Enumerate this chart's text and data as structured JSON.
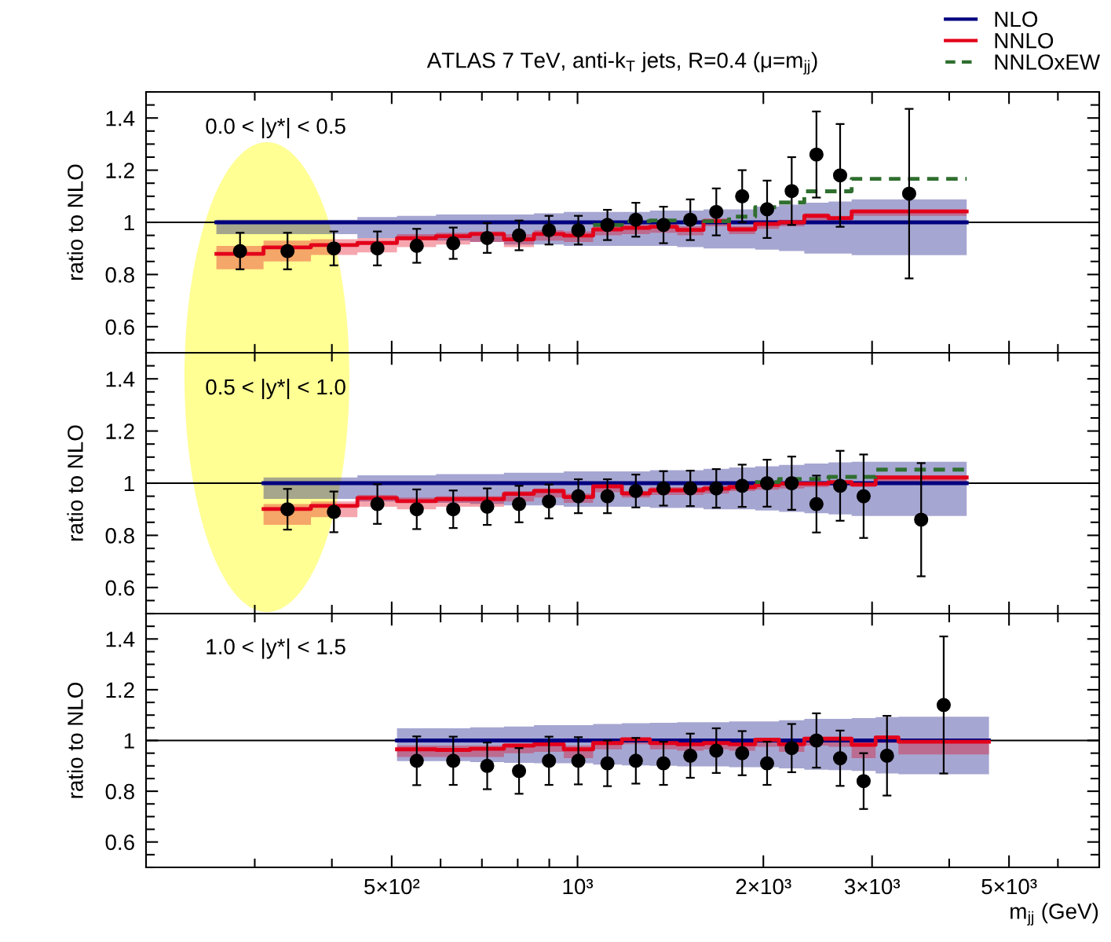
{
  "chart_data": [
    {
      "type": "step",
      "title": "ATLAS 7 TeV, anti-k$_{T}$ jets, R=0.4 (μ=m$_{jj}$)",
      "ylabel": "ratio to NLO",
      "annotations": [
        "0.0 < |y*| < 0.5"
      ],
      "xlim": [
        200,
        7000
      ],
      "ylim": [
        0.5,
        1.5
      ],
      "log": "x",
      "xticks": [
        {
          "value": 500,
          "label": null
        },
        {
          "value": 1000,
          "label": null
        },
        {
          "value": 2000,
          "label": null
        },
        {
          "value": 3000,
          "label": null
        },
        {
          "value": 5000,
          "label": null
        }
      ],
      "yticks": [
        0.6,
        0.8,
        1,
        1.2,
        1.4
      ],
      "tick_labels": "y",
      "grid": false,
      "legend": "top right",
      "ref_lines": [
        {
          "axis": "y",
          "value": 1,
          "color": "#000000"
        }
      ],
      "series": [
        {
          "name": "NLO",
          "color": "#00007f",
          "x": [
            260,
            310,
            370,
            440,
            510,
            590,
            670,
            760,
            850,
            950,
            1060,
            1180,
            1310,
            1450,
            1600,
            1760,
            1940,
            2120,
            2330,
            2550,
            2780,
            4270
          ],
          "values": [
            1,
            1,
            1,
            1,
            1,
            1,
            1,
            1,
            1,
            1,
            1,
            1,
            1,
            1,
            1,
            1,
            1,
            1,
            1,
            1,
            1,
            1
          ],
          "upper": [
            1.01,
            1.01,
            1.01,
            1.02,
            1.025,
            1.03,
            1.03,
            1.03,
            1.035,
            1.04,
            1.04,
            1.04,
            1.045,
            1.045,
            1.05,
            1.05,
            1.06,
            1.068,
            1.075,
            1.08,
            1.088,
            1.088
          ],
          "lower": [
            0.955,
            0.955,
            0.955,
            0.94,
            0.935,
            0.93,
            0.925,
            0.915,
            0.915,
            0.91,
            0.91,
            0.91,
            0.91,
            0.905,
            0.9,
            0.9,
            0.895,
            0.89,
            0.88,
            0.88,
            0.874,
            0.874
          ]
        },
        {
          "name": "NNLO",
          "color": "#e3001b",
          "x": [
            260,
            310,
            370,
            440,
            510,
            590,
            670,
            760,
            850,
            950,
            1060,
            1180,
            1310,
            1450,
            1600,
            1760,
            1940,
            2120,
            2330,
            2550,
            2780,
            4270
          ],
          "values": [
            0.879,
            0.904,
            0.913,
            0.921,
            0.939,
            0.947,
            0.955,
            0.935,
            0.955,
            0.949,
            0.973,
            0.979,
            0.983,
            0.971,
            1.004,
            0.973,
            0.994,
            1.0,
            1.025,
            1.016,
            1.042,
            1.042
          ],
          "lower": [
            0.82,
            0.85,
            0.875,
            0.885,
            0.905,
            0.915,
            0.925,
            0.905,
            0.93,
            0.925,
            0.95,
            0.955,
            0.96,
            0.95,
            0.985,
            0.955,
            0.975,
            0.985,
            1.005,
            1.0,
            1.025,
            1.025
          ],
          "upper": [
            0.91,
            0.93,
            0.935,
            0.94,
            0.955,
            0.96,
            0.965,
            0.955,
            0.97,
            0.965,
            0.985,
            0.99,
            0.995,
            0.985,
            1.015,
            0.985,
            1.005,
            1.01,
            1.035,
            1.025,
            1.05,
            1.05
          ]
        },
        {
          "name": "NNLOxEW",
          "color": "#2f6f2f",
          "line_style": "dashed",
          "x": [
            1060,
            1180,
            1310,
            1450,
            1600,
            1760,
            1940,
            2120,
            2330,
            2550,
            2780,
            4270
          ],
          "values": [
            0.99,
            1.004,
            1.007,
            1.004,
            1.004,
            1.022,
            1.058,
            1.076,
            1.119,
            1.119,
            1.167,
            1.167
          ]
        },
        {
          "type": "scatter",
          "color": "#000000",
          "marker": "circle",
          "x": [
            284,
            339,
            403,
            474,
            549,
            629,
            714,
            804,
            899,
            1003,
            1118,
            1243,
            1378,
            1523,
            1678,
            1848,
            2028,
            2223,
            2438,
            2663,
            3445
          ],
          "values": [
            0.89,
            0.89,
            0.9,
            0.9,
            0.91,
            0.92,
            0.94,
            0.95,
            0.97,
            0.97,
            0.99,
            1.01,
            0.99,
            1.01,
            1.04,
            1.1,
            1.05,
            1.12,
            1.26,
            1.18,
            1.11
          ],
          "errors": [
            0.07,
            0.07,
            0.065,
            0.065,
            0.065,
            0.06,
            0.057,
            0.057,
            0.055,
            0.055,
            0.058,
            0.065,
            0.07,
            0.078,
            0.09,
            0.1,
            0.11,
            0.13,
            0.165,
            0.197,
            0.325
          ]
        }
      ]
    },
    {
      "type": "step",
      "ylabel": "ratio to NLO",
      "annotations": [
        "0.5 < |y*| < 1.0"
      ],
      "xlim": [
        200,
        7000
      ],
      "ylim": [
        0.5,
        1.5
      ],
      "log": "x",
      "xticks": [
        {
          "value": 500,
          "label": null
        },
        {
          "value": 1000,
          "label": null
        },
        {
          "value": 2000,
          "label": null
        },
        {
          "value": 3000,
          "label": null
        },
        {
          "value": 5000,
          "label": null
        }
      ],
      "yticks": [
        0.6,
        0.8,
        1,
        1.2,
        1.4
      ],
      "tick_labels": "y",
      "grid": false,
      "ref_lines": [
        {
          "axis": "y",
          "value": 1,
          "color": "#000000"
        }
      ],
      "series": [
        {
          "color": "#00007f",
          "x": [
            310,
            370,
            440,
            510,
            590,
            670,
            760,
            850,
            950,
            1060,
            1180,
            1310,
            1450,
            1600,
            1760,
            1940,
            2120,
            2330,
            2550,
            2780,
            3040,
            4270
          ],
          "values": [
            1,
            1,
            1,
            1,
            1,
            1,
            1,
            1,
            1,
            1,
            1,
            1,
            1,
            1,
            1,
            1,
            1,
            1,
            1,
            1,
            1,
            1
          ],
          "upper": [
            1.022,
            1.022,
            1.03,
            1.03,
            1.035,
            1.035,
            1.04,
            1.04,
            1.045,
            1.045,
            1.045,
            1.05,
            1.05,
            1.055,
            1.06,
            1.065,
            1.07,
            1.075,
            1.08,
            1.082,
            1.082,
            1.082
          ],
          "lower": [
            0.94,
            0.94,
            0.93,
            0.925,
            0.925,
            0.92,
            0.915,
            0.915,
            0.91,
            0.91,
            0.91,
            0.905,
            0.905,
            0.9,
            0.9,
            0.895,
            0.89,
            0.885,
            0.88,
            0.874,
            0.874,
            0.874
          ]
        },
        {
          "color": "#e3001b",
          "x": [
            310,
            370,
            440,
            510,
            590,
            670,
            760,
            850,
            950,
            1060,
            1180,
            1310,
            1450,
            1600,
            1760,
            1940,
            2120,
            2330,
            2550,
            2780,
            3040,
            4270
          ],
          "values": [
            0.901,
            0.913,
            0.943,
            0.931,
            0.939,
            0.939,
            0.959,
            0.97,
            0.947,
            0.988,
            0.961,
            0.973,
            0.973,
            0.979,
            0.985,
            0.992,
            0.998,
            0.998,
            1.004,
            0.995,
            1.022,
            1.022
          ],
          "lower": [
            0.84,
            0.87,
            0.91,
            0.9,
            0.91,
            0.91,
            0.93,
            0.945,
            0.925,
            0.965,
            0.945,
            0.955,
            0.955,
            0.96,
            0.97,
            0.975,
            0.98,
            0.985,
            0.99,
            0.985,
            1.0,
            1.0
          ],
          "upper": [
            0.92,
            0.93,
            0.955,
            0.945,
            0.95,
            0.95,
            0.97,
            0.98,
            0.96,
            1.0,
            0.97,
            0.985,
            0.985,
            0.99,
            0.995,
            1.0,
            1.005,
            1.005,
            1.01,
            1.005,
            1.03,
            1.03
          ]
        },
        {
          "color": "#2f6f2f",
          "line_style": "dashed",
          "x": [
            1940,
            2120,
            2330,
            2550,
            2780,
            3040,
            4270
          ],
          "values": [
            1.004,
            1.016,
            1.016,
            1.024,
            1.024,
            1.052,
            1.052
          ]
        },
        {
          "type": "scatter",
          "color": "#000000",
          "marker": "circle",
          "x": [
            339,
            403,
            474,
            549,
            629,
            714,
            804,
            899,
            1003,
            1118,
            1243,
            1378,
            1523,
            1678,
            1848,
            2028,
            2223,
            2438,
            2663,
            2907,
            3603
          ],
          "values": [
            0.9,
            0.89,
            0.92,
            0.9,
            0.9,
            0.91,
            0.92,
            0.93,
            0.95,
            0.95,
            0.97,
            0.98,
            0.98,
            0.98,
            0.99,
            1.0,
            1.0,
            0.92,
            0.99,
            0.95,
            0.86
          ],
          "errors": [
            0.078,
            0.078,
            0.076,
            0.076,
            0.072,
            0.07,
            0.07,
            0.065,
            0.065,
            0.065,
            0.063,
            0.066,
            0.068,
            0.074,
            0.081,
            0.09,
            0.102,
            0.109,
            0.134,
            0.16,
            0.217
          ]
        }
      ]
    },
    {
      "type": "step",
      "xlabel": "m$_{jj}$ (GeV)",
      "ylabel": "ratio to NLO",
      "annotations": [
        "1.0 < |y*| < 1.5"
      ],
      "xlim": [
        200,
        7000
      ],
      "ylim": [
        0.5,
        1.5
      ],
      "log": "x",
      "xticks": [
        {
          "value": 500,
          "label": "5×10²"
        },
        {
          "value": 1000,
          "label": "10³"
        },
        {
          "value": 2000,
          "label": "2×10³"
        },
        {
          "value": 3000,
          "label": "3×10³"
        },
        {
          "value": 5000,
          "label": "5×10³"
        }
      ],
      "yticks": [
        0.6,
        0.8,
        1,
        1.2,
        1.4
      ],
      "grid": false,
      "ref_lines": [
        {
          "axis": "y",
          "value": 1,
          "color": "#000000"
        }
      ],
      "series": [
        {
          "color": "#00007f",
          "x": [
            510,
            590,
            670,
            760,
            850,
            950,
            1060,
            1180,
            1310,
            1450,
            1600,
            1760,
            1940,
            2120,
            2330,
            2550,
            2780,
            3040,
            3310,
            4640
          ],
          "values": [
            1,
            1,
            1,
            1,
            1,
            1,
            1,
            1,
            1,
            1,
            1,
            1,
            1,
            1,
            1,
            1,
            1,
            1,
            1,
            1
          ],
          "upper": [
            1.048,
            1.048,
            1.052,
            1.055,
            1.06,
            1.06,
            1.065,
            1.068,
            1.07,
            1.072,
            1.072,
            1.075,
            1.075,
            1.08,
            1.085,
            1.085,
            1.088,
            1.092,
            1.094,
            1.094
          ],
          "lower": [
            0.919,
            0.919,
            0.915,
            0.912,
            0.91,
            0.91,
            0.905,
            0.902,
            0.9,
            0.898,
            0.898,
            0.895,
            0.895,
            0.89,
            0.885,
            0.883,
            0.88,
            0.87,
            0.867,
            0.867
          ]
        },
        {
          "color": "#e3001b",
          "x": [
            510,
            590,
            670,
            760,
            850,
            950,
            1060,
            1180,
            1310,
            1450,
            1600,
            1760,
            1940,
            2120,
            2330,
            2550,
            2780,
            3040,
            3310,
            4640
          ],
          "values": [
            0.965,
            0.963,
            0.967,
            0.98,
            0.985,
            0.965,
            0.99,
            1.005,
            0.99,
            0.985,
            0.99,
            0.985,
            1.003,
            0.985,
            1.007,
            1.007,
            0.983,
            1.012,
            0.995,
            0.995
          ],
          "lower": [
            0.935,
            0.935,
            0.935,
            0.95,
            0.955,
            0.93,
            0.965,
            0.985,
            0.965,
            0.96,
            0.965,
            0.96,
            0.975,
            0.955,
            0.98,
            0.975,
            0.93,
            0.99,
            0.945,
            0.945
          ],
          "upper": [
            0.98,
            0.98,
            0.98,
            0.99,
            0.995,
            0.98,
            1.0,
            1.01,
            1.0,
            1.0,
            1.0,
            0.995,
            1.01,
            0.995,
            1.015,
            1.015,
            0.995,
            1.02,
            1.003,
            1.003
          ]
        },
        {
          "type": "scatter",
          "color": "#000000",
          "marker": "circle",
          "x": [
            549,
            629,
            714,
            804,
            899,
            1003,
            1118,
            1243,
            1378,
            1523,
            1678,
            1848,
            2028,
            2223,
            2438,
            2663,
            2907,
            3172,
            3919
          ],
          "values": [
            0.92,
            0.92,
            0.9,
            0.88,
            0.92,
            0.92,
            0.91,
            0.92,
            0.91,
            0.94,
            0.96,
            0.95,
            0.91,
            0.97,
            1.0,
            0.93,
            0.84,
            0.94,
            1.14
          ],
          "errors": [
            0.096,
            0.095,
            0.092,
            0.09,
            0.095,
            0.093,
            0.09,
            0.09,
            0.085,
            0.087,
            0.088,
            0.087,
            0.085,
            0.095,
            0.107,
            0.109,
            0.11,
            0.157,
            0.27
          ]
        }
      ]
    }
  ]
}
